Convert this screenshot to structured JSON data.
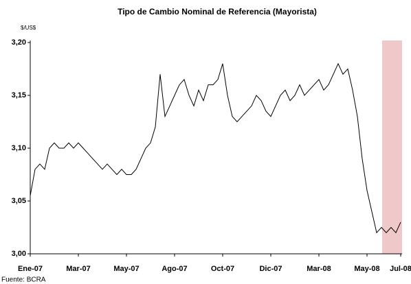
{
  "chart_data": {
    "type": "line",
    "title": "Tipo de Cambio Nominal de Referencia (Mayorista)",
    "y_label": "$/US$",
    "source": "Fuente: BCRA",
    "categories": [
      "Ene-07",
      null,
      null,
      null,
      null,
      null,
      null,
      null,
      null,
      null,
      "Mar-07",
      null,
      null,
      null,
      null,
      null,
      null,
      null,
      null,
      null,
      "May-07",
      null,
      null,
      null,
      null,
      null,
      null,
      null,
      null,
      null,
      "Ago-07",
      null,
      null,
      null,
      null,
      null,
      null,
      null,
      null,
      null,
      "Oct-07",
      null,
      null,
      null,
      null,
      null,
      null,
      null,
      null,
      null,
      "Dic-07",
      null,
      null,
      null,
      null,
      null,
      null,
      null,
      null,
      null,
      "Mar-08",
      null,
      null,
      null,
      null,
      null,
      null,
      null,
      null,
      null,
      "May-08",
      null,
      null,
      null,
      null,
      null,
      null,
      "Jul-08"
    ],
    "series": [
      {
        "name": "Tipo de cambio",
        "color": "#000000",
        "values": [
          3.055,
          3.08,
          3.085,
          3.08,
          3.1,
          3.105,
          3.1,
          3.1,
          3.105,
          3.1,
          3.105,
          3.1,
          3.095,
          3.09,
          3.085,
          3.08,
          3.085,
          3.08,
          3.075,
          3.08,
          3.075,
          3.075,
          3.08,
          3.09,
          3.1,
          3.105,
          3.12,
          3.17,
          3.13,
          3.14,
          3.15,
          3.16,
          3.165,
          3.15,
          3.14,
          3.155,
          3.145,
          3.16,
          3.16,
          3.165,
          3.18,
          3.15,
          3.13,
          3.125,
          3.13,
          3.135,
          3.14,
          3.15,
          3.145,
          3.135,
          3.13,
          3.14,
          3.15,
          3.155,
          3.145,
          3.15,
          3.16,
          3.15,
          3.155,
          3.16,
          3.165,
          3.155,
          3.16,
          3.17,
          3.18,
          3.17,
          3.175,
          3.155,
          3.13,
          3.09,
          3.06,
          3.04,
          3.02,
          3.025,
          3.02,
          3.025,
          3.02,
          3.03
        ]
      }
    ],
    "ylim": [
      3.0,
      3.2
    ],
    "yticks": [
      {
        "value": 3.0,
        "label": "3,00"
      },
      {
        "value": 3.05,
        "label": "3,05"
      },
      {
        "value": 3.1,
        "label": "3,10"
      },
      {
        "value": 3.15,
        "label": "3,15"
      },
      {
        "value": 3.2,
        "label": "3,20"
      }
    ]
  }
}
